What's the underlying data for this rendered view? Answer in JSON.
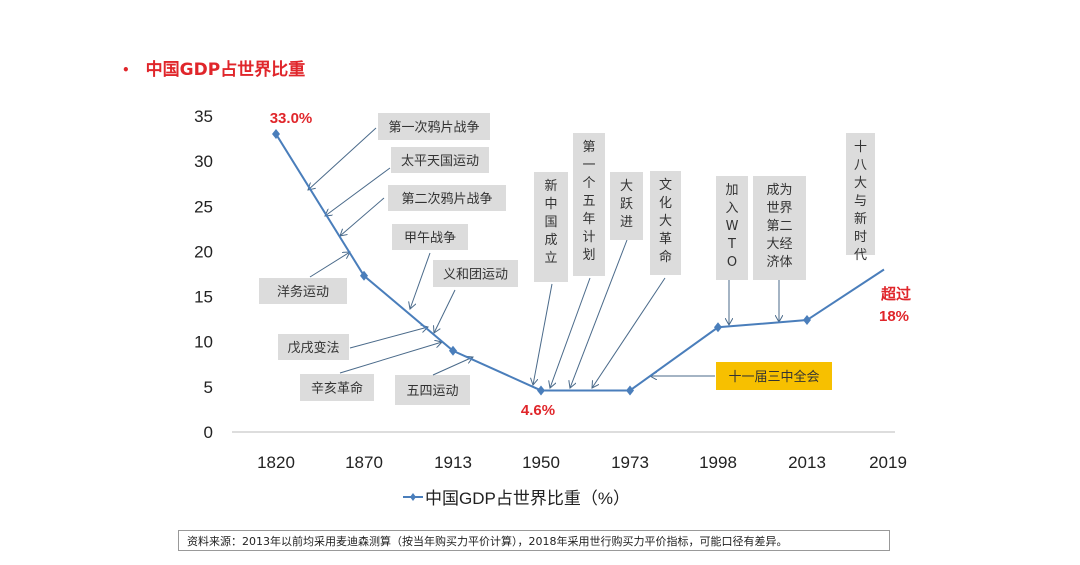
{
  "title": "中国GDP占世界比重",
  "chart_data": {
    "type": "line",
    "title": "",
    "categories": [
      "1820",
      "1870",
      "1913",
      "1950",
      "1973",
      "1998",
      "2013",
      "2019"
    ],
    "series": [
      {
        "name": "中国GDP占世界比重（%）",
        "values": [
          33.0,
          17.3,
          9.0,
          4.6,
          4.6,
          11.6,
          12.4,
          18.0
        ],
        "color": "#4a7ebb"
      }
    ],
    "y_ticks": [
      "0",
      "5",
      "10",
      "15",
      "20",
      "25",
      "30",
      "35"
    ],
    "ylim": [
      0,
      35
    ],
    "grid": false,
    "legend": "bottom",
    "data_labels": [
      {
        "category": "1820",
        "text": "33.0%"
      },
      {
        "category": "1950",
        "text": "4.6%"
      },
      {
        "category": "2019",
        "text": "超过",
        "text2": "18%"
      }
    ],
    "annotations": [
      "第一次鸦片战争",
      "太平天国运动",
      "第二次鸦片战争",
      "甲午战争",
      "义和团运动",
      "洋务运动",
      "戊戌变法",
      "辛亥革命",
      "五四运动",
      "新中国成立",
      "第一个五年计划",
      "大跃进",
      "文化大革命",
      "加入WTO",
      "成为世界第二大经济体",
      "十八大与新时代",
      "十一届三中全会"
    ],
    "highlight_color": "#f7c000",
    "label_color": "#e0262b"
  },
  "source": "资料来源：2013年以前均采用麦迪森测算（按当年购买力平价计算），2018年采用世行购买力平价指标，可能口径有差异。"
}
